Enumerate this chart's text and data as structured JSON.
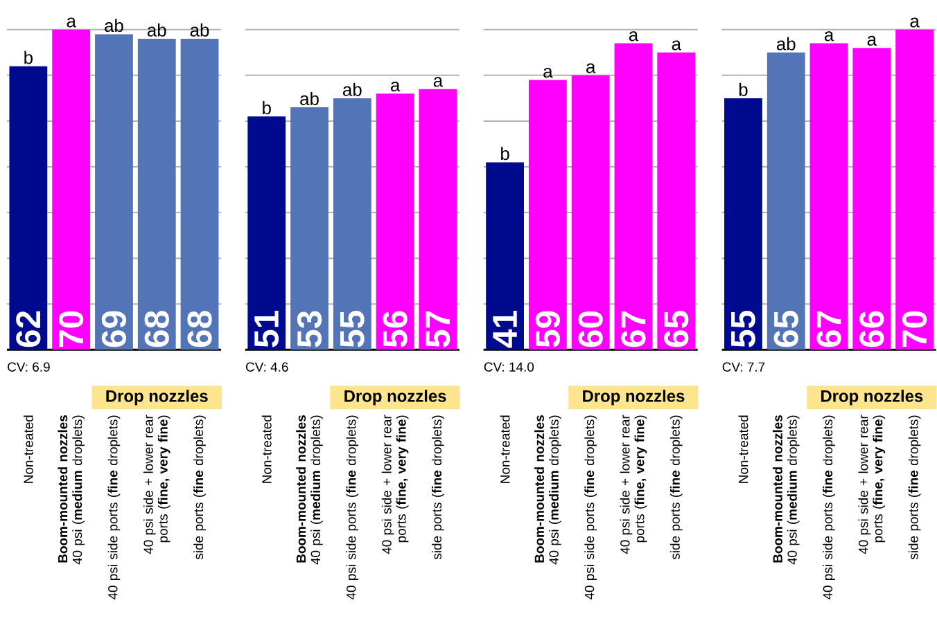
{
  "chart_data": [
    {
      "type": "bar",
      "categories": [
        "Non-treated",
        "**Boom-mounted nozzles** 40 psi (**medium** droplets)",
        "40 psi side ports (**fine** droplets)",
        "40 psi side + lower rear ports (**fine, very fine**)",
        "side ports (**fine** droplets)"
      ],
      "values": [
        62,
        70,
        69,
        68,
        68
      ],
      "colors": [
        "#000a8f",
        "#ff00ff",
        "#5474b8",
        "#5474b8",
        "#5474b8"
      ],
      "data_labels": true,
      "ylim": [
        0,
        70
      ],
      "yticks": [
        {
          "value": 10,
          "label": null
        },
        {
          "value": 20,
          "label": null
        },
        {
          "value": 30,
          "label": null
        },
        {
          "value": 40,
          "label": null
        },
        {
          "value": 50,
          "label": null
        },
        {
          "value": 60,
          "label": null
        },
        {
          "value": 70,
          "label": null
        }
      ],
      "grid": "y",
      "tick_labels": "x",
      "annotations": [
        "CV:  6.9",
        "Drop nozzles",
        {
          "text": "b",
          "x": "Non-treated",
          "y": 62
        },
        {
          "text": "a",
          "x": "**Boom-mounted nozzles** 40 psi (**medium** droplets)",
          "y": 70
        },
        {
          "text": "ab",
          "x": "40 psi side ports (**fine** droplets)",
          "y": 69
        },
        {
          "text": "ab",
          "x": "40 psi side + lower rear ports (**fine, very fine**)",
          "y": 68
        },
        {
          "text": "ab",
          "x": "side ports (**fine** droplets)",
          "y": 68
        }
      ]
    },
    {
      "type": "bar",
      "categories": [
        "Non-treated",
        "**Boom-mounted nozzles** 40 psi (**medium** droplets)",
        "40 psi side ports (**fine** droplets)",
        "40 psi side + lower rear ports (**fine, very fine**)",
        "side ports (**fine** droplets)"
      ],
      "values": [
        51,
        53,
        55,
        56,
        57
      ],
      "colors": [
        "#000a8f",
        "#5474b8",
        "#5474b8",
        "#ff00ff",
        "#ff00ff"
      ],
      "data_labels": true,
      "ylim": [
        0,
        70
      ],
      "yticks": [
        {
          "value": 10,
          "label": null
        },
        {
          "value": 20,
          "label": null
        },
        {
          "value": 30,
          "label": null
        },
        {
          "value": 40,
          "label": null
        },
        {
          "value": 50,
          "label": null
        },
        {
          "value": 60,
          "label": null
        },
        {
          "value": 70,
          "label": null
        }
      ],
      "grid": "y",
      "tick_labels": "x",
      "annotations": [
        "CV:  4.6",
        "Drop nozzles",
        {
          "text": "b",
          "x": "Non-treated",
          "y": 51
        },
        {
          "text": "ab",
          "x": "**Boom-mounted nozzles** 40 psi (**medium** droplets)",
          "y": 53
        },
        {
          "text": "ab",
          "x": "40 psi side ports (**fine** droplets)",
          "y": 55
        },
        {
          "text": "a",
          "x": "40 psi side + lower rear ports (**fine, very fine**)",
          "y": 56
        },
        {
          "text": "a",
          "x": "side ports (**fine** droplets)",
          "y": 57
        }
      ]
    },
    {
      "type": "bar",
      "categories": [
        "Non-treated",
        "**Boom-mounted nozzles** 40 psi (**medium** droplets)",
        "40 psi side ports (**fine** droplets)",
        "40 psi side + lower rear ports (**fine, very fine**)",
        "side ports (**fine** droplets)"
      ],
      "values": [
        41,
        59,
        60,
        67,
        65
      ],
      "colors": [
        "#000a8f",
        "#ff00ff",
        "#ff00ff",
        "#ff00ff",
        "#ff00ff"
      ],
      "data_labels": true,
      "ylim": [
        0,
        70
      ],
      "yticks": [
        {
          "value": 10,
          "label": null
        },
        {
          "value": 20,
          "label": null
        },
        {
          "value": 30,
          "label": null
        },
        {
          "value": 40,
          "label": null
        },
        {
          "value": 50,
          "label": null
        },
        {
          "value": 60,
          "label": null
        },
        {
          "value": 70,
          "label": null
        }
      ],
      "grid": "y",
      "tick_labels": "x",
      "annotations": [
        "CV:  14.0",
        "Drop nozzles",
        {
          "text": "b",
          "x": "Non-treated",
          "y": 41
        },
        {
          "text": "a",
          "x": "**Boom-mounted nozzles** 40 psi (**medium** droplets)",
          "y": 59
        },
        {
          "text": "a",
          "x": "40 psi side ports (**fine** droplets)",
          "y": 60
        },
        {
          "text": "a",
          "x": "40 psi side + lower rear ports (**fine, very fine**)",
          "y": 67
        },
        {
          "text": "a",
          "x": "side ports (**fine** droplets)",
          "y": 65
        }
      ]
    },
    {
      "type": "bar",
      "categories": [
        "Non-treated",
        "**Boom-mounted nozzles** 40 psi (**medium** droplets)",
        "40 psi side ports (**fine** droplets)",
        "40 psi side + lower rear ports (**fine, very fine**)",
        "side ports (**fine** droplets)"
      ],
      "values": [
        55,
        65,
        67,
        66,
        70
      ],
      "colors": [
        "#000a8f",
        "#5474b8",
        "#ff00ff",
        "#ff00ff",
        "#ff00ff"
      ],
      "data_labels": true,
      "ylim": [
        0,
        70
      ],
      "yticks": [
        {
          "value": 10,
          "label": null
        },
        {
          "value": 20,
          "label": null
        },
        {
          "value": 30,
          "label": null
        },
        {
          "value": 40,
          "label": null
        },
        {
          "value": 50,
          "label": null
        },
        {
          "value": 60,
          "label": null
        },
        {
          "value": 70,
          "label": null
        }
      ],
      "grid": "y",
      "tick_labels": "x",
      "annotations": [
        "CV:  7.7",
        "Drop nozzles",
        {
          "text": "b",
          "x": "Non-treated",
          "y": 55
        },
        {
          "text": "ab",
          "x": "**Boom-mounted nozzles** 40 psi (**medium** droplets)",
          "y": 65
        },
        {
          "text": "a",
          "x": "40 psi side ports (**fine** droplets)",
          "y": 67
        },
        {
          "text": "a",
          "x": "40 psi side + lower rear ports (**fine, very fine**)",
          "y": 66
        },
        {
          "text": "a",
          "x": "side ports (**fine** droplets)",
          "y": 70
        }
      ]
    }
  ]
}
